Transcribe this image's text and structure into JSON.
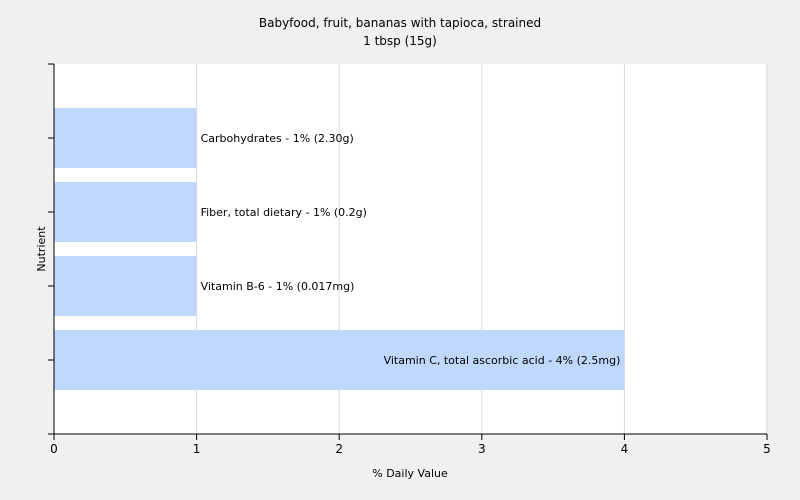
{
  "chart_data": {
    "type": "bar",
    "orientation": "horizontal",
    "title": "Babyfood, fruit, bananas with tapioca, strained",
    "subtitle": "1 tbsp (15g)",
    "xlabel": "% Daily Value",
    "ylabel": "Nutrient",
    "xlim": [
      0,
      5
    ],
    "xticks": [
      "0",
      "1",
      "2",
      "3",
      "4",
      "5"
    ],
    "grid": true,
    "categories": [
      "Carbohydrates",
      "Fiber, total dietary",
      "Vitamin B-6",
      "Vitamin C, total ascorbic acid"
    ],
    "values": [
      1,
      1,
      1,
      4
    ],
    "bar_labels": [
      "Carbohydrates - 1% (2.30g)",
      "Fiber, total dietary - 1% (0.2g)",
      "Vitamin B-6 - 1% (0.017mg)",
      "Vitamin C, total ascorbic acid - 4% (2.5mg)"
    ],
    "colors": {
      "bar": "#c0d8fc",
      "plot_bg": "#ffffff",
      "grid": "#d8d8d8"
    }
  }
}
